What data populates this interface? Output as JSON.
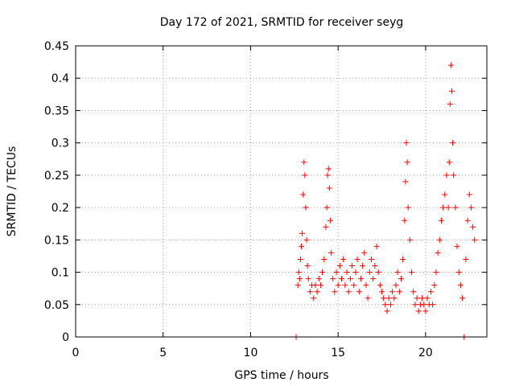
{
  "chart_data": {
    "type": "scatter",
    "title": "Day 172 of 2021, SRMTID for receiver seyg",
    "xlabel": "GPS time / hours",
    "ylabel": "SRMTID / TECUs",
    "xlim": [
      0,
      23.5
    ],
    "ylim": [
      0,
      0.45
    ],
    "xticks": [
      0,
      5,
      10,
      15,
      20
    ],
    "xtick_labels": [
      "0",
      "5",
      "10",
      "15",
      "20"
    ],
    "yticks": [
      0,
      0.05,
      0.1,
      0.15,
      0.2,
      0.25,
      0.3,
      0.35,
      0.4,
      0.45
    ],
    "ytick_labels": [
      "0",
      "0.05",
      "0.1",
      "0.15",
      "0.2",
      "0.25",
      "0.3",
      "0.35",
      "0.4",
      "0.45"
    ],
    "grid": true,
    "series": [
      {
        "name": "SRMTID",
        "marker": "+",
        "color": "#ff0000",
        "points": [
          [
            12.6,
            0.0
          ],
          [
            12.7,
            0.08
          ],
          [
            12.75,
            0.1
          ],
          [
            12.8,
            0.09
          ],
          [
            12.85,
            0.12
          ],
          [
            12.9,
            0.14
          ],
          [
            12.95,
            0.16
          ],
          [
            13.0,
            0.22
          ],
          [
            13.05,
            0.27
          ],
          [
            13.1,
            0.25
          ],
          [
            13.15,
            0.2
          ],
          [
            13.2,
            0.15
          ],
          [
            13.25,
            0.11
          ],
          [
            13.3,
            0.09
          ],
          [
            13.4,
            0.07
          ],
          [
            13.5,
            0.08
          ],
          [
            13.6,
            0.06
          ],
          [
            13.7,
            0.08
          ],
          [
            13.8,
            0.07
          ],
          [
            13.9,
            0.09
          ],
          [
            14.0,
            0.08
          ],
          [
            14.1,
            0.1
          ],
          [
            14.2,
            0.12
          ],
          [
            14.3,
            0.17
          ],
          [
            14.35,
            0.2
          ],
          [
            14.4,
            0.25
          ],
          [
            14.45,
            0.26
          ],
          [
            14.5,
            0.23
          ],
          [
            14.55,
            0.18
          ],
          [
            14.6,
            0.13
          ],
          [
            14.7,
            0.09
          ],
          [
            14.8,
            0.07
          ],
          [
            14.9,
            0.1
          ],
          [
            15.0,
            0.08
          ],
          [
            15.1,
            0.11
          ],
          [
            15.2,
            0.09
          ],
          [
            15.3,
            0.12
          ],
          [
            15.4,
            0.08
          ],
          [
            15.5,
            0.1
          ],
          [
            15.6,
            0.07
          ],
          [
            15.7,
            0.09
          ],
          [
            15.8,
            0.11
          ],
          [
            15.9,
            0.08
          ],
          [
            16.0,
            0.1
          ],
          [
            16.1,
            0.12
          ],
          [
            16.2,
            0.07
          ],
          [
            16.3,
            0.09
          ],
          [
            16.4,
            0.11
          ],
          [
            16.5,
            0.13
          ],
          [
            16.6,
            0.08
          ],
          [
            16.7,
            0.06
          ],
          [
            16.8,
            0.1
          ],
          [
            16.9,
            0.12
          ],
          [
            17.0,
            0.09
          ],
          [
            17.1,
            0.11
          ],
          [
            17.2,
            0.14
          ],
          [
            17.3,
            0.1
          ],
          [
            17.4,
            0.08
          ],
          [
            17.5,
            0.07
          ],
          [
            17.6,
            0.06
          ],
          [
            17.7,
            0.05
          ],
          [
            17.8,
            0.04
          ],
          [
            17.9,
            0.06
          ],
          [
            18.0,
            0.05
          ],
          [
            18.1,
            0.07
          ],
          [
            18.2,
            0.06
          ],
          [
            18.3,
            0.08
          ],
          [
            18.4,
            0.1
          ],
          [
            18.5,
            0.07
          ],
          [
            18.6,
            0.09
          ],
          [
            18.7,
            0.12
          ],
          [
            18.8,
            0.18
          ],
          [
            18.85,
            0.24
          ],
          [
            18.9,
            0.3
          ],
          [
            18.95,
            0.27
          ],
          [
            19.0,
            0.2
          ],
          [
            19.1,
            0.15
          ],
          [
            19.2,
            0.1
          ],
          [
            19.3,
            0.07
          ],
          [
            19.4,
            0.05
          ],
          [
            19.5,
            0.06
          ],
          [
            19.6,
            0.04
          ],
          [
            19.7,
            0.05
          ],
          [
            19.8,
            0.06
          ],
          [
            19.9,
            0.05
          ],
          [
            20.0,
            0.04
          ],
          [
            20.1,
            0.06
          ],
          [
            20.2,
            0.05
          ],
          [
            20.3,
            0.07
          ],
          [
            20.4,
            0.05
          ],
          [
            20.5,
            0.08
          ],
          [
            20.6,
            0.1
          ],
          [
            20.7,
            0.13
          ],
          [
            20.8,
            0.15
          ],
          [
            20.9,
            0.18
          ],
          [
            21.0,
            0.2
          ],
          [
            21.1,
            0.22
          ],
          [
            21.2,
            0.25
          ],
          [
            21.3,
            0.2
          ],
          [
            21.35,
            0.27
          ],
          [
            21.4,
            0.36
          ],
          [
            21.45,
            0.42
          ],
          [
            21.5,
            0.38
          ],
          [
            21.55,
            0.3
          ],
          [
            21.6,
            0.25
          ],
          [
            21.7,
            0.2
          ],
          [
            21.8,
            0.14
          ],
          [
            21.9,
            0.1
          ],
          [
            22.0,
            0.08
          ],
          [
            22.1,
            0.06
          ],
          [
            22.2,
            0.0
          ],
          [
            22.3,
            0.12
          ],
          [
            22.4,
            0.18
          ],
          [
            22.5,
            0.22
          ],
          [
            22.6,
            0.2
          ],
          [
            22.7,
            0.17
          ],
          [
            22.8,
            0.15
          ]
        ]
      }
    ]
  }
}
